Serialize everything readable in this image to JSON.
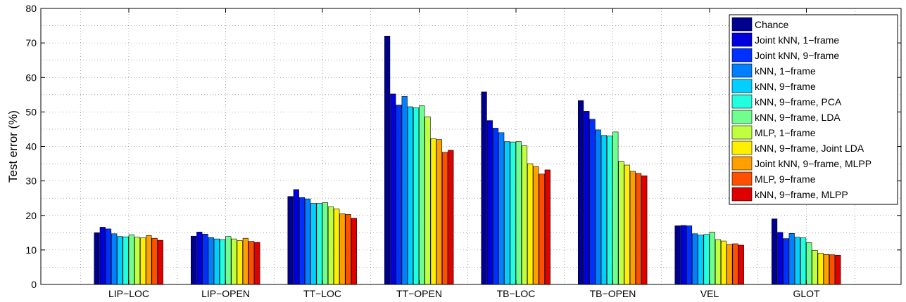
{
  "chart_data": {
    "type": "bar",
    "title": "",
    "xlabel": "",
    "ylabel": "Test error (%)",
    "ylim": [
      0,
      80
    ],
    "yticks": [
      "0",
      "10",
      "20",
      "30",
      "40",
      "50",
      "60",
      "70",
      "80"
    ],
    "grid": true,
    "legend_position": "top-right",
    "categories": [
      "LIP−LOC",
      "LIP−OPEN",
      "TT−LOC",
      "TT−OPEN",
      "TB−LOC",
      "TB−OPEN",
      "VEL",
      "GLOT"
    ],
    "series": [
      {
        "name": "Chance",
        "color": "#00008f",
        "values": [
          15.0,
          14.0,
          25.5,
          72.0,
          55.8,
          53.3,
          17.0,
          19.0
        ]
      },
      {
        "name": "Joint kNN, 1−frame",
        "color": "#0000df",
        "values": [
          16.6,
          15.2,
          27.5,
          55.2,
          47.5,
          50.2,
          17.1,
          15.1
        ]
      },
      {
        "name": "Joint kNN, 9−frame",
        "color": "#0030ff",
        "values": [
          16.1,
          14.6,
          25.2,
          52.0,
          45.3,
          47.9,
          17.0,
          13.3
        ]
      },
      {
        "name": "kNN, 1−frame",
        "color": "#0080ff",
        "values": [
          14.7,
          13.6,
          24.8,
          54.5,
          44.0,
          44.8,
          14.7,
          14.8
        ]
      },
      {
        "name": "kNN, 9−frame",
        "color": "#00cfff",
        "values": [
          13.9,
          13.2,
          23.5,
          51.5,
          41.4,
          43.2,
          14.3,
          13.7
        ]
      },
      {
        "name": "kNN, 9−frame, PCA",
        "color": "#20ffdf",
        "values": [
          13.8,
          13.0,
          23.5,
          51.2,
          41.3,
          43.0,
          14.5,
          13.5
        ]
      },
      {
        "name": "kNN, 9−frame, LDA",
        "color": "#70ff8f",
        "values": [
          14.4,
          13.9,
          23.7,
          51.8,
          41.4,
          44.2,
          15.2,
          12.1
        ]
      },
      {
        "name": "MLP, 1−frame",
        "color": "#bfff40",
        "values": [
          13.7,
          13.2,
          22.5,
          48.6,
          40.2,
          35.7,
          13.0,
          9.9
        ]
      },
      {
        "name": "kNN, 9−frame, Joint LDA",
        "color": "#ffef00",
        "values": [
          13.5,
          12.7,
          21.9,
          42.2,
          35.0,
          34.6,
          12.6,
          9.1
        ]
      },
      {
        "name": "Joint kNN, 9−frame, MLPP",
        "color": "#ff9f00",
        "values": [
          14.2,
          13.4,
          20.5,
          42.0,
          34.2,
          32.8,
          11.6,
          8.7
        ]
      },
      {
        "name": "MLP, 9−frame",
        "color": "#ff5000",
        "values": [
          13.4,
          12.5,
          20.3,
          38.3,
          32.0,
          32.2,
          11.8,
          8.6
        ]
      },
      {
        "name": "kNN, 9−frame, MLPP",
        "color": "#df0000",
        "values": [
          12.8,
          12.2,
          19.2,
          38.9,
          33.2,
          31.5,
          11.4,
          8.5
        ]
      }
    ],
    "extra_series_color": "#800000"
  }
}
